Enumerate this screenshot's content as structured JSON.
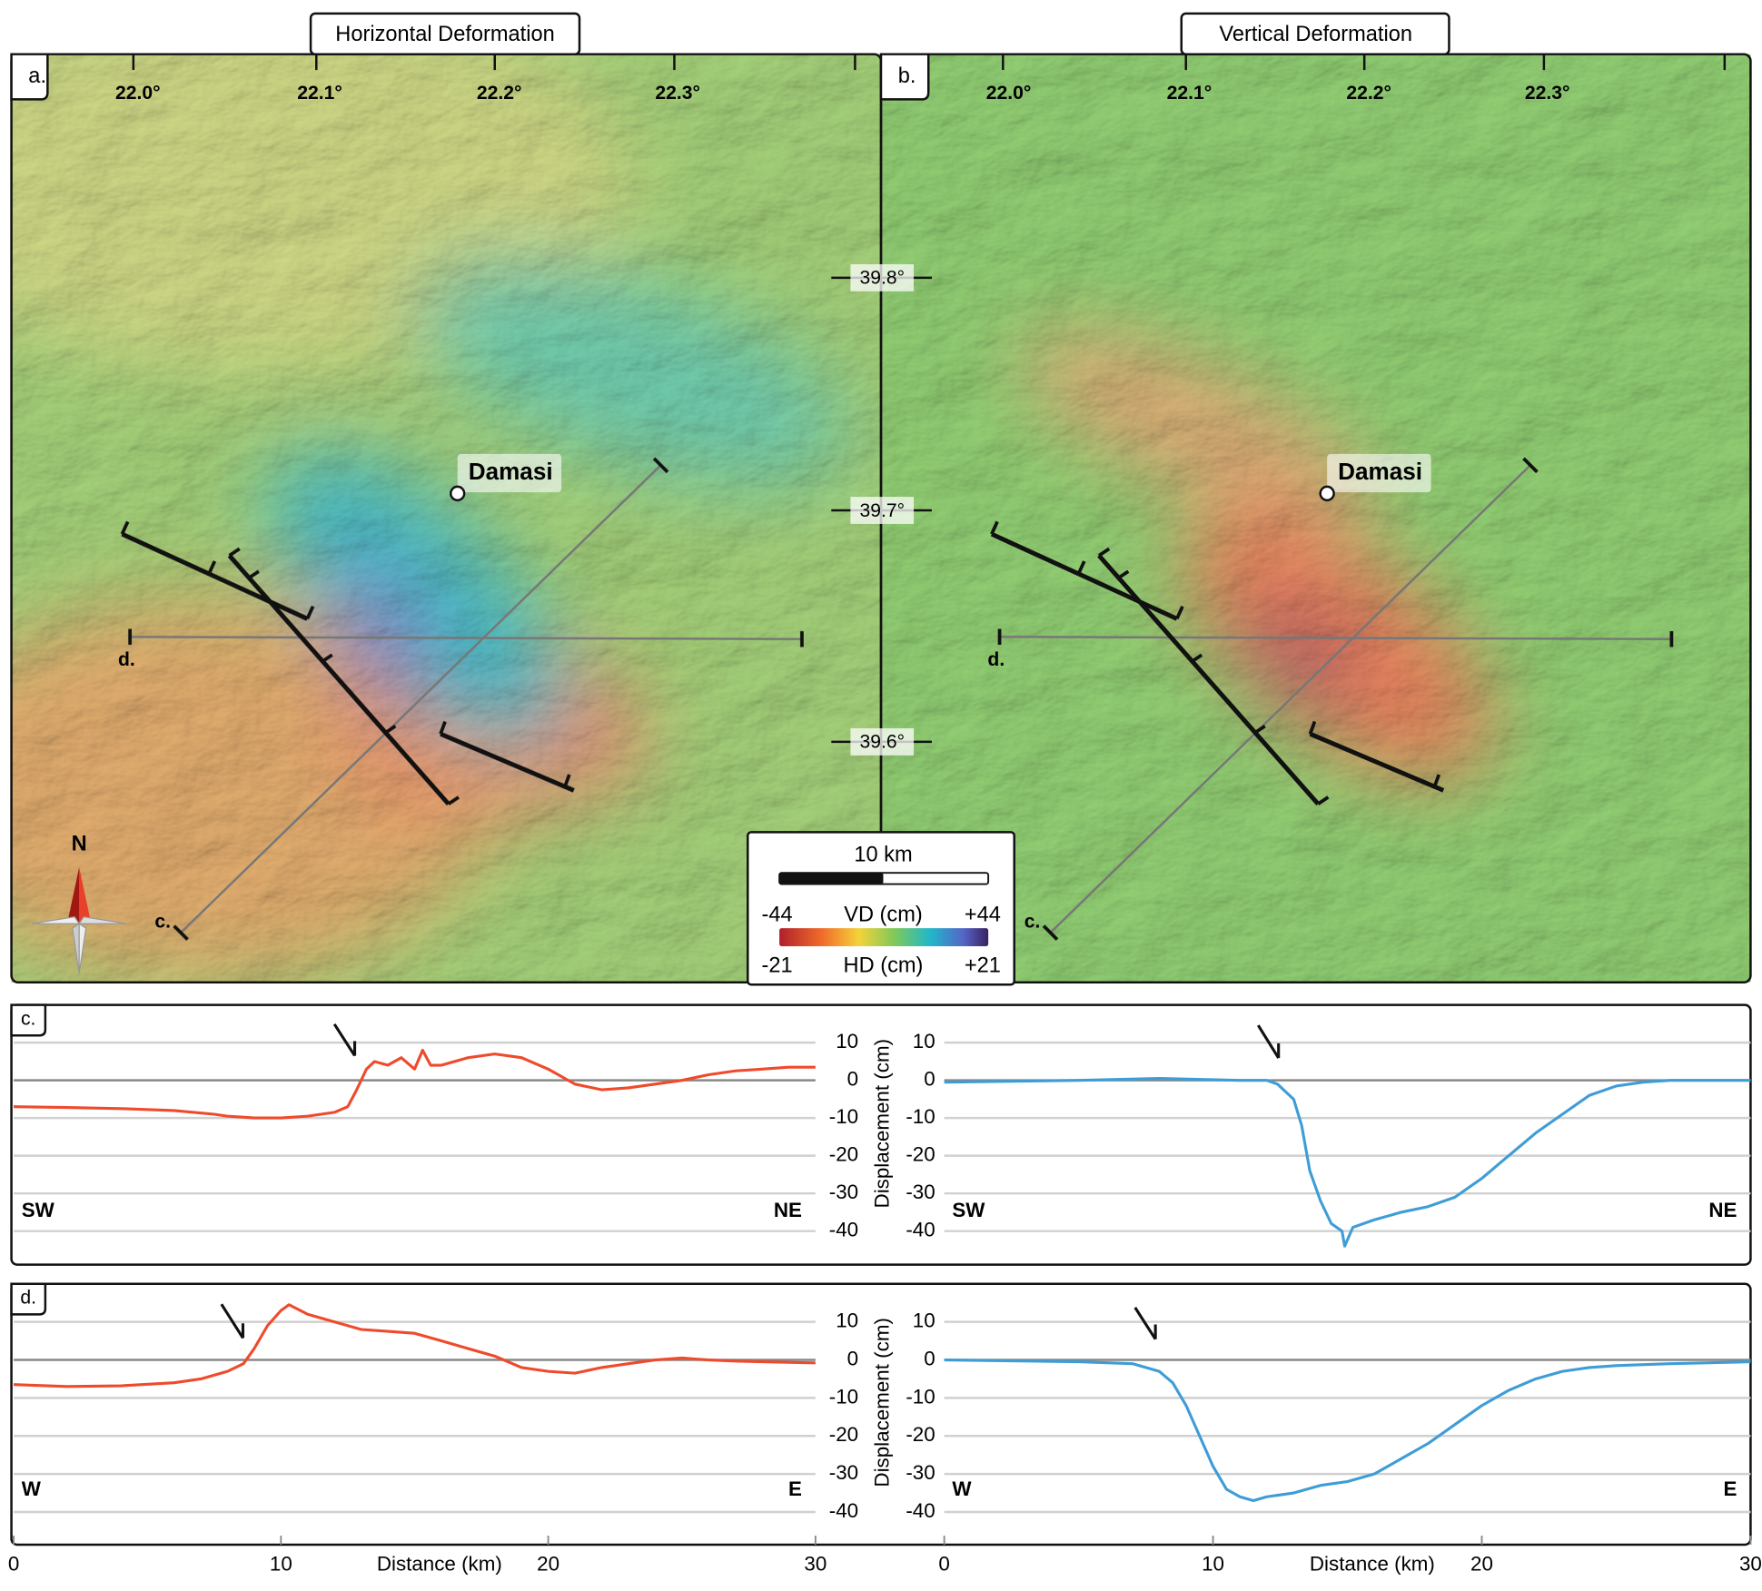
{
  "panels": [
    {
      "label": "a.",
      "title": "Horizontal Deformation",
      "longitude_ticks": [
        "22.0°",
        "22.1°",
        "22.2°",
        "22.3°"
      ],
      "town": "Damasi",
      "profile_labels": [
        "c.",
        "d."
      ]
    },
    {
      "label": "b.",
      "title": "Vertical Deformation",
      "longitude_ticks": [
        "22.0°",
        "22.1°",
        "22.2°",
        "22.3°"
      ],
      "town": "Damasi",
      "profile_labels": [
        "c.",
        "d."
      ]
    }
  ],
  "latitude_ticks": [
    "39.8°",
    "39.7°",
    "39.6°"
  ],
  "north": "N",
  "legend": {
    "scale": "10 km",
    "vd_min": "-44",
    "vd_label": "VD (cm)",
    "vd_max": "+44",
    "hd_min": "-21",
    "hd_label": "HD (cm)",
    "hd_max": "+21"
  },
  "chart_data": [
    {
      "type": "line",
      "panel_label": "c.",
      "left_label": "SW",
      "right_label": "NE",
      "y_label": "Displacement (cm)",
      "x": [
        0,
        2,
        4,
        6,
        7.5,
        8,
        9,
        10,
        11,
        12,
        12.5,
        12.8,
        13,
        13.2,
        13.5,
        14,
        14.5,
        15,
        15.3,
        15.6,
        16,
        17,
        18,
        19,
        20,
        21,
        22,
        23,
        24,
        25,
        26,
        27,
        28,
        29,
        30
      ],
      "values": [
        -7,
        -7.2,
        -7.5,
        -8,
        -9,
        -9.5,
        -10,
        -10,
        -9.5,
        -8.5,
        -7,
        -3,
        0,
        3,
        5,
        4,
        6,
        3,
        8,
        4,
        4,
        6,
        7,
        6,
        3,
        -1,
        -2.5,
        -2,
        -1,
        0,
        1.5,
        2.5,
        3,
        3.5,
        3.5
      ],
      "color": "#ef4a2c",
      "xlim": [
        0,
        30
      ],
      "ylim": [
        -48,
        20
      ],
      "yticks": [
        10,
        0,
        -10,
        -20,
        -30,
        -40
      ],
      "grid": true
    },
    {
      "type": "line",
      "left_label": "SW",
      "right_label": "NE",
      "x": [
        0,
        5,
        8,
        11,
        12,
        12.4,
        13,
        13.3,
        13.6,
        14,
        14.4,
        14.8,
        14.9,
        15.2,
        16,
        17,
        18,
        19,
        20,
        21,
        22,
        23,
        24,
        25,
        26,
        27,
        30
      ],
      "values": [
        -0.5,
        0,
        0.5,
        0,
        0,
        -1,
        -5,
        -12,
        -24,
        -32,
        -38,
        -40,
        -44,
        -39,
        -37,
        -35,
        -33.5,
        -31,
        -26,
        -20,
        -14,
        -9,
        -4,
        -1.5,
        -0.5,
        0,
        0
      ],
      "color": "#3e9dd6",
      "xlim": [
        0,
        30
      ],
      "ylim": [
        -48,
        20
      ],
      "yticks": [
        10,
        0,
        -10,
        -20,
        -30,
        -40
      ],
      "grid": true
    },
    {
      "type": "line",
      "panel_label": "d.",
      "left_label": "W",
      "right_label": "E",
      "y_label": "Displacement (cm)",
      "x_label": "Distance (km)",
      "x": [
        0,
        2,
        4,
        6,
        7,
        8,
        8.6,
        9,
        9.5,
        10,
        10.3,
        11,
        12,
        13,
        14,
        15,
        16,
        17,
        18,
        19,
        20,
        21,
        22,
        23,
        24,
        25,
        26,
        27,
        28,
        30
      ],
      "values": [
        -6.5,
        -7,
        -6.8,
        -6,
        -5,
        -3,
        -1,
        3,
        9,
        13,
        14.5,
        12,
        10,
        8,
        7.5,
        7,
        5,
        3,
        1,
        -2,
        -3,
        -3.5,
        -2,
        -1,
        0,
        0.5,
        0,
        -0.3,
        -0.5,
        -0.8
      ],
      "color": "#ef4a2c",
      "xlim": [
        0,
        30
      ],
      "ylim": [
        -48,
        20
      ],
      "yticks": [
        10,
        0,
        -10,
        -20,
        -30,
        -40
      ],
      "xticks": [
        0,
        10,
        20,
        30
      ],
      "grid": true
    },
    {
      "type": "line",
      "left_label": "W",
      "right_label": "E",
      "x_label": "Distance (km)",
      "x": [
        0,
        5,
        7,
        8,
        8.5,
        9,
        9.5,
        10,
        10.5,
        11,
        11.5,
        12,
        13,
        14,
        15,
        16,
        17,
        18,
        19,
        20,
        21,
        22,
        23,
        24,
        25,
        27,
        30
      ],
      "values": [
        0,
        -0.5,
        -1,
        -3,
        -6,
        -12,
        -20,
        -28,
        -34,
        -36,
        -37,
        -36,
        -35,
        -33,
        -32,
        -30,
        -26,
        -22,
        -17,
        -12,
        -8,
        -5,
        -3,
        -2,
        -1.5,
        -1,
        -0.5
      ],
      "color": "#3e9dd6",
      "xlim": [
        0,
        30
      ],
      "ylim": [
        -48,
        20
      ],
      "yticks": [
        10,
        0,
        -10,
        -20,
        -30,
        -40
      ],
      "xticks": [
        0,
        10,
        20,
        30
      ],
      "grid": true
    }
  ]
}
